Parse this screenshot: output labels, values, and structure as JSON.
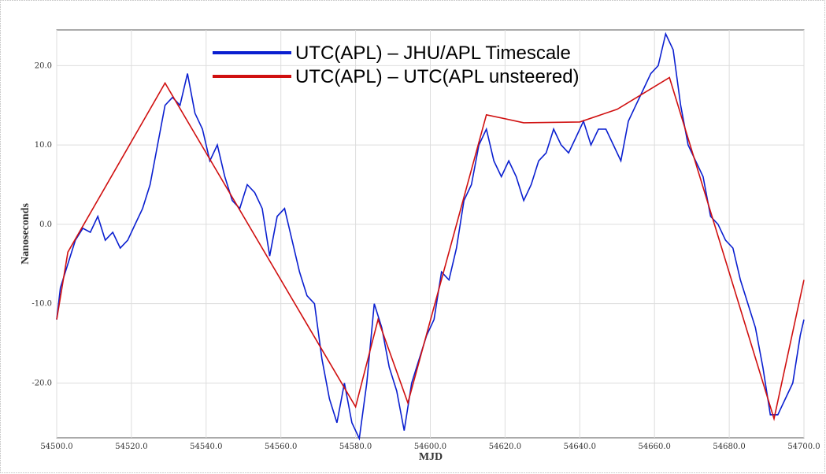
{
  "chart_data": {
    "type": "line",
    "xlabel": "MJD",
    "ylabel": "Nanoseconds",
    "xlim": [
      54500,
      54700
    ],
    "ylim": [
      -26.9,
      24.5
    ],
    "xticks": [
      {
        "value": 54500,
        "label": "54500.0"
      },
      {
        "value": 54520,
        "label": "54520.0"
      },
      {
        "value": 54540,
        "label": "54540.0"
      },
      {
        "value": 54560,
        "label": "54560.0"
      },
      {
        "value": 54580,
        "label": "54580.0"
      },
      {
        "value": 54600,
        "label": "54600.0"
      },
      {
        "value": 54620,
        "label": "54620.0"
      },
      {
        "value": 54640,
        "label": "54640.0"
      },
      {
        "value": 54660,
        "label": "54660.0"
      },
      {
        "value": 54680,
        "label": "54680.0"
      },
      {
        "value": 54700,
        "label": "54700.0"
      }
    ],
    "yticks": [
      {
        "value": -20,
        "label": "-20.0"
      },
      {
        "value": -10,
        "label": "-10.0"
      },
      {
        "value": 0,
        "label": "0.0"
      },
      {
        "value": 10,
        "label": "10.0"
      },
      {
        "value": 20,
        "label": "20.0"
      }
    ],
    "grid": true,
    "legend": "upper center",
    "series": [
      {
        "name": "UTC(APL) – JHU/APL Timescale",
        "color": "#0a1fd0",
        "x": [
          54500,
          54501,
          54503,
          54505,
          54507,
          54509,
          54511,
          54513,
          54515,
          54517,
          54519,
          54521,
          54523,
          54525,
          54527,
          54529,
          54531,
          54533,
          54535,
          54537,
          54539,
          54541,
          54543,
          54545,
          54547,
          54549,
          54551,
          54553,
          54555,
          54557,
          54559,
          54561,
          54563,
          54565,
          54567,
          54569,
          54571,
          54573,
          54575,
          54577,
          54579,
          54581,
          54583,
          54585,
          54587,
          54589,
          54591,
          54593,
          54595,
          54597,
          54599,
          54601,
          54603,
          54605,
          54607,
          54609,
          54611,
          54613,
          54615,
          54617,
          54619,
          54621,
          54623,
          54625,
          54627,
          54629,
          54631,
          54633,
          54635,
          54637,
          54639,
          54641,
          54643,
          54645,
          54647,
          54649,
          54651,
          54653,
          54655,
          54657,
          54659,
          54661,
          54663,
          54665,
          54667,
          54669,
          54671,
          54673,
          54675,
          54677,
          54679,
          54681,
          54683,
          54685,
          54687,
          54689,
          54691,
          54693,
          54695,
          54697,
          54699,
          54700
        ],
        "values": [
          -12,
          -8,
          -5,
          -2,
          -0.5,
          -1,
          1,
          -2,
          -1,
          -3,
          -2,
          0,
          2,
          5,
          10,
          15,
          16,
          15,
          19,
          14,
          12,
          8,
          10,
          6,
          3,
          2,
          5,
          4,
          2,
          -4,
          1,
          2,
          -2,
          -6,
          -9,
          -10,
          -17,
          -22,
          -25,
          -20,
          -25,
          -27,
          -20,
          -10,
          -13,
          -18,
          -21,
          -26,
          -20,
          -17,
          -14,
          -12,
          -6,
          -7,
          -3,
          3,
          5,
          10,
          12,
          8,
          6,
          8,
          6,
          3,
          5,
          8,
          9,
          12,
          10,
          9,
          11,
          13,
          10,
          12,
          12,
          10,
          8,
          13,
          15,
          17,
          19,
          20,
          24,
          22,
          15,
          10,
          8,
          6,
          1,
          0,
          -2,
          -3,
          -7,
          -10,
          -13,
          -18,
          -24,
          -24,
          -22,
          -20,
          -14,
          -12
        ]
      },
      {
        "name": "UTC(APL) – UTC(APL unsteered)",
        "color": "#d01010",
        "x": [
          54500,
          54503,
          54529,
          54580,
          54586,
          54594,
          54615,
          54625,
          54640,
          54650,
          54664,
          54692,
          54700
        ],
        "values": [
          -12,
          -3.5,
          17.8,
          -23,
          -12,
          -22.5,
          13.8,
          12.8,
          12.9,
          14.5,
          18.5,
          -24.5,
          -7
        ]
      }
    ]
  }
}
